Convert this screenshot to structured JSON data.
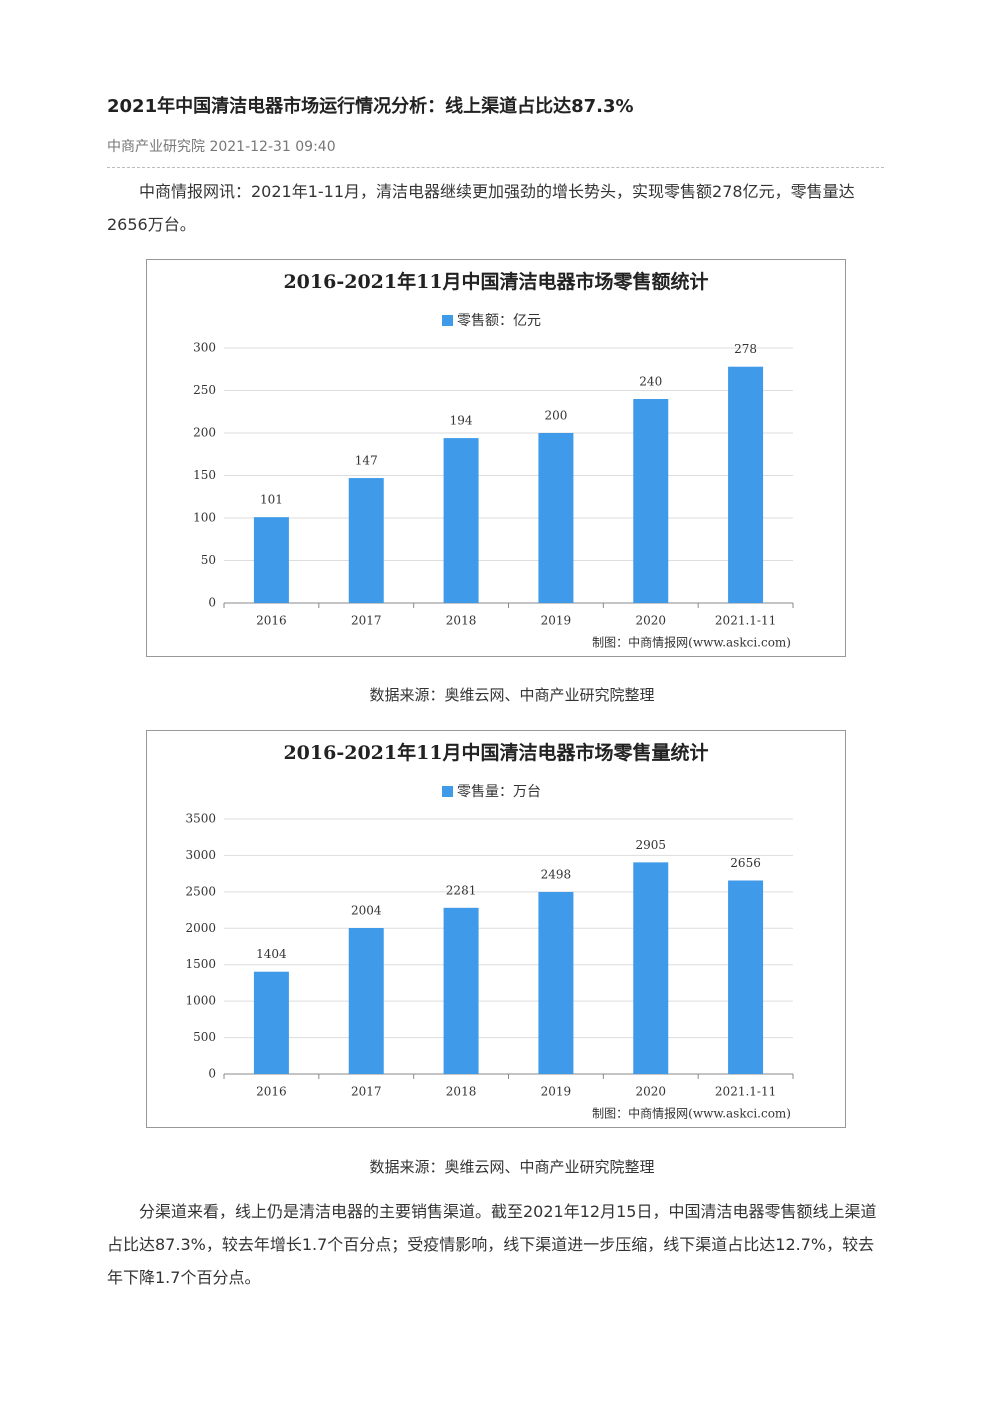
{
  "header": {
    "title": "2021年中国清洁电器市场运行情况分析：线上渠道占比达87.3%",
    "meta": "中商产业研究院 2021-12-31 09:40"
  },
  "paragraphs": [
    "中商情报网讯：2021年1-11月，清洁电器继续更加强劲的增长势头，实现零售额278亿元，零售量达2656万台。",
    "分渠道来看，线上仍是清洁电器的主要销售渠道。截至2021年12月15日，中国清洁电器零售额线上渠道占比达87.3%，较去年增长1.7个百分点；受疫情影响，线下渠道进一步压缩，线下渠道占比达12.7%，较去年下降1.7个百分点。"
  ],
  "captions": [
    "数据来源：奥维云网、中商产业研究院整理",
    "数据来源：奥维云网、中商产业研究院整理"
  ],
  "chart_data": [
    {
      "type": "bar",
      "title": "2016-2021年11月中国清洁电器市场零售额统计",
      "credit": "制图：中商情报网(www.askci.com)",
      "categories": [
        "2016",
        "2017",
        "2018",
        "2019",
        "2020",
        "2021.1-11"
      ],
      "series": [
        {
          "name": "零售额：亿元",
          "color": "#3f9be9",
          "values": [
            101,
            147,
            194,
            200,
            240,
            278
          ]
        }
      ],
      "ylim": [
        0,
        300
      ],
      "yticks": [
        0,
        50,
        100,
        150,
        200,
        250,
        300
      ],
      "grid": true
    },
    {
      "type": "bar",
      "title": "2016-2021年11月中国清洁电器市场零售量统计",
      "credit": "制图：中商情报网(www.askci.com)",
      "categories": [
        "2016",
        "2017",
        "2018",
        "2019",
        "2020",
        "2021.1-11"
      ],
      "series": [
        {
          "name": "零售量：万台",
          "color": "#3f9be9",
          "values": [
            1404,
            2004,
            2281,
            2498,
            2905,
            2656
          ]
        }
      ],
      "ylim": [
        0,
        3500
      ],
      "yticks": [
        0,
        500,
        1000,
        1500,
        2000,
        2500,
        3000,
        3500
      ],
      "grid": true
    }
  ]
}
